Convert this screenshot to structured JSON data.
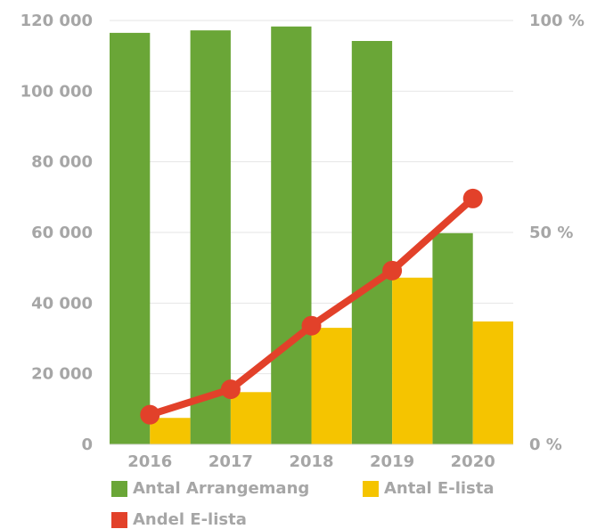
{
  "chart_data": {
    "type": "bar",
    "categories": [
      "2016",
      "2017",
      "2018",
      "2019",
      "2020"
    ],
    "series": [
      {
        "name": "Antal Arrangemang",
        "kind": "bar",
        "axis": "left",
        "color": "#6aa637",
        "values": [
          116500,
          117200,
          118300,
          114200,
          59800
        ]
      },
      {
        "name": "Antal E-lista",
        "kind": "bar",
        "axis": "left",
        "color": "#f5c400",
        "values": [
          7500,
          14800,
          33000,
          47200,
          34800
        ]
      },
      {
        "name": "Andel E-lista",
        "kind": "line",
        "axis": "right",
        "color": "#e2412a",
        "values": [
          7,
          13,
          28,
          41,
          58
        ]
      }
    ],
    "y_left": {
      "ylim": [
        0,
        120000
      ],
      "ticks": [
        0,
        20000,
        40000,
        60000,
        80000,
        100000,
        120000
      ],
      "tick_labels": [
        "0",
        "20 000",
        "40 000",
        "60 000",
        "80 000",
        "100 000",
        "120 000"
      ]
    },
    "y_right": {
      "ylim": [
        0,
        100
      ],
      "ticks": [
        0,
        50,
        100
      ],
      "tick_labels": [
        "0 %",
        "50 %",
        "100 %"
      ]
    },
    "grid": true,
    "legend_position": "bottom"
  }
}
